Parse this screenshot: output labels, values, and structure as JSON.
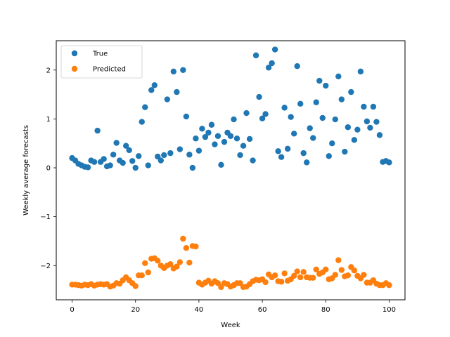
{
  "chart_data": {
    "type": "scatter",
    "xlabel": "Week",
    "ylabel": "Weekly average forecasts",
    "xlim": [
      -5,
      105
    ],
    "ylim": [
      -2.7,
      2.6
    ],
    "x_ticks": [
      0,
      20,
      40,
      60,
      80,
      100
    ],
    "y_ticks": [
      -2,
      -1,
      0,
      1,
      2
    ],
    "y_tick_labels": [
      "−2",
      "−1",
      "0",
      "1",
      "2"
    ],
    "grid": false,
    "legend_position": "top-left",
    "series": [
      {
        "name": "True",
        "color": "#1f77b4",
        "values": [
          0.2,
          0.15,
          0.08,
          0.05,
          0.02,
          0.01,
          0.15,
          0.12,
          0.76,
          0.12,
          0.18,
          0.03,
          0.05,
          0.27,
          0.51,
          0.15,
          0.1,
          0.45,
          0.36,
          0.14,
          0.0,
          0.24,
          0.94,
          1.24,
          0.05,
          1.59,
          1.69,
          0.23,
          0.15,
          0.26,
          1.4,
          0.3,
          1.97,
          1.55,
          0.38,
          2.0,
          1.05,
          0.27,
          0.0,
          0.6,
          0.35,
          0.8,
          0.63,
          0.72,
          0.88,
          0.48,
          0.65,
          0.06,
          0.53,
          0.72,
          0.65,
          0.99,
          0.6,
          0.26,
          0.45,
          1.12,
          0.59,
          0.15,
          2.3,
          1.45,
          1.01,
          1.1,
          2.05,
          2.14,
          2.42,
          0.34,
          0.22,
          1.23,
          0.39,
          1.04,
          0.7,
          2.08,
          1.31,
          0.3,
          0.11,
          0.81,
          0.61,
          1.34,
          1.78,
          1.02,
          1.68,
          0.24,
          0.5,
          0.99,
          1.87,
          1.4,
          0.33,
          0.83,
          1.55,
          0.57,
          0.78,
          1.97,
          1.25,
          0.95,
          0.82,
          1.25,
          0.94,
          0.67,
          0.12,
          0.14,
          0.11
        ]
      },
      {
        "name": "Predicted",
        "color": "#ff7f0e",
        "values": [
          -2.39,
          -2.39,
          -2.4,
          -2.41,
          -2.39,
          -2.4,
          -2.38,
          -2.41,
          -2.39,
          -2.38,
          -2.39,
          -2.38,
          -2.43,
          -2.41,
          -2.36,
          -2.37,
          -2.3,
          -2.24,
          -2.3,
          -2.36,
          -2.42,
          -2.2,
          -2.2,
          -1.95,
          -2.14,
          -1.86,
          -1.85,
          -1.9,
          -2.0,
          -2.05,
          -2.0,
          -1.97,
          -2.06,
          -2.02,
          -1.93,
          -1.45,
          -1.64,
          -1.94,
          -1.6,
          -1.61,
          -2.35,
          -2.39,
          -2.35,
          -2.31,
          -2.37,
          -2.32,
          -2.36,
          -2.44,
          -2.36,
          -2.38,
          -2.43,
          -2.4,
          -2.36,
          -2.36,
          -2.44,
          -2.43,
          -2.38,
          -2.32,
          -2.29,
          -2.3,
          -2.28,
          -2.34,
          -2.18,
          -2.24,
          -2.2,
          -2.32,
          -2.33,
          -2.16,
          -2.31,
          -2.28,
          -2.21,
          -2.12,
          -2.24,
          -2.13,
          -2.24,
          -2.25,
          -2.25,
          -2.08,
          -2.17,
          -2.14,
          -2.08,
          -2.28,
          -2.26,
          -2.19,
          -1.89,
          -2.09,
          -2.22,
          -2.2,
          -2.03,
          -2.1,
          -2.21,
          -2.26,
          -2.19,
          -2.35,
          -2.35,
          -2.3,
          -2.37,
          -2.4,
          -2.4,
          -2.36,
          -2.4
        ]
      }
    ]
  }
}
